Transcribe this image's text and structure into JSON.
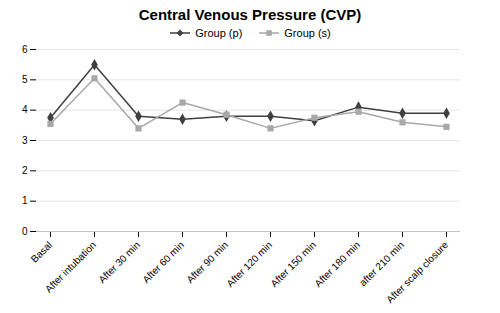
{
  "chart_data": {
    "type": "line",
    "title": "Central Venous Pressure (CVP)",
    "categories": [
      "Basal",
      "After intubation",
      "After 30 min",
      "After 60 min",
      "After 90 min",
      "After 120 min",
      "After 150 min",
      "After 180 min",
      "after 210 min",
      "After scalp closure"
    ],
    "series": [
      {
        "name": "Group (p)",
        "color": "#404040",
        "marker": "diamond",
        "values": [
          3.75,
          5.5,
          3.8,
          3.7,
          3.8,
          3.8,
          3.65,
          4.1,
          3.9,
          3.9
        ]
      },
      {
        "name": "Group (s)",
        "color": "#a8a8a8",
        "marker": "square",
        "values": [
          3.55,
          5.05,
          3.4,
          4.25,
          3.85,
          3.4,
          3.75,
          3.95,
          3.6,
          3.45
        ]
      }
    ],
    "ylim": [
      0,
      6
    ],
    "yticks": [
      0,
      1,
      2,
      3,
      4,
      5,
      6
    ],
    "grid": true,
    "legend": "top"
  }
}
